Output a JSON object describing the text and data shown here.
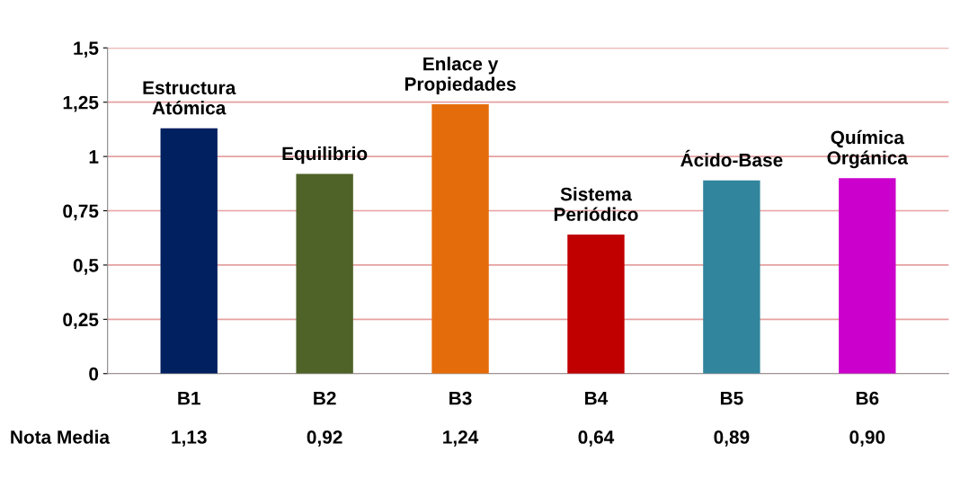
{
  "chart_data": {
    "type": "bar",
    "categories": [
      "B1",
      "B2",
      "B3",
      "B4",
      "B5",
      "B6"
    ],
    "values": [
      1.13,
      0.92,
      1.24,
      0.64,
      0.89,
      0.9
    ],
    "colors": [
      "#002060",
      "#4f6228",
      "#e46c0a",
      "#c00000",
      "#31859c",
      "#cc00cc"
    ],
    "value_labels": [
      "1,13",
      "0,92",
      "1,24",
      "0,64",
      "0,89",
      "0,90"
    ],
    "ylim": [
      0,
      1.5
    ],
    "yticks": [
      0,
      {
        "value": 0.25,
        "label": "0,25"
      },
      {
        "value": 0.5,
        "label": "0,5"
      },
      {
        "value": 0.75,
        "label": "0,75"
      },
      1,
      {
        "value": 1.25,
        "label": "1,25"
      },
      {
        "value": 1.5,
        "label": "1,5"
      }
    ],
    "grid": "y",
    "annotations": [
      {
        "text": "Estructura\nAtómica",
        "x": "B1",
        "y": 1.13
      },
      {
        "text": "Equilibrio",
        "x": "B2",
        "y": 0.92
      },
      {
        "text": "Enlace y\nPropiedades",
        "x": "B3",
        "y": 1.24
      },
      {
        "text": "Sistema\nPeriódico",
        "x": "B4",
        "y": 0.64
      },
      {
        "text": "Ácido-Base",
        "x": "B5",
        "y": 0.89
      },
      {
        "text": "Química\nOrgánica",
        "x": "B6",
        "y": 0.9
      },
      "Nota Media"
    ]
  }
}
